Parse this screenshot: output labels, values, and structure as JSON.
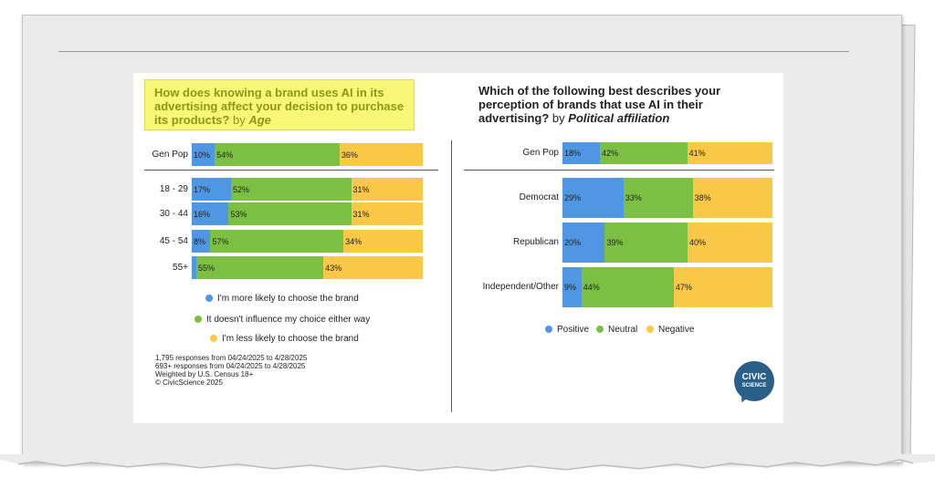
{
  "colors": {
    "positive": "#4f97e3",
    "neutral": "#7bc043",
    "negative": "#f9c846"
  },
  "chart_data": [
    {
      "type": "bar",
      "stacked": true,
      "orientation": "horizontal",
      "title": "How does knowing a brand uses AI in its advertising affect your decision to purchase its products?",
      "title_suffix": "by",
      "title_dimension": "Age",
      "categories": [
        "Gen Pop",
        "18 - 29",
        "30 - 44",
        "45 - 54",
        "55+"
      ],
      "series": [
        {
          "name": "I'm more likely to choose the brand",
          "labels": [
            "10%",
            "17%",
            "16%",
            "8%",
            ""
          ],
          "values": [
            10,
            17,
            16,
            8,
            2
          ]
        },
        {
          "name": "It doesn't influence my choice either way",
          "labels": [
            "54%",
            "52%",
            "53%",
            "57%",
            "55%"
          ],
          "values": [
            54,
            52,
            53,
            57,
            55
          ]
        },
        {
          "name": "I'm less likely to choose the brand",
          "labels": [
            "36%",
            "31%",
            "31%",
            "34%",
            "43%"
          ],
          "values": [
            36,
            31,
            31,
            34,
            43
          ]
        }
      ]
    },
    {
      "type": "bar",
      "stacked": true,
      "orientation": "horizontal",
      "title": "Which of the following best describes your perception of brands that use AI in their advertising?",
      "title_suffix": "by",
      "title_dimension": "Political affiliation",
      "categories": [
        "Gen Pop",
        "Democrat",
        "Republican",
        "Independent/Other"
      ],
      "series": [
        {
          "name": "Positive",
          "labels": [
            "18%",
            "29%",
            "20%",
            "9%"
          ],
          "values": [
            18,
            29,
            20,
            9
          ]
        },
        {
          "name": "Neutral",
          "labels": [
            "42%",
            "33%",
            "39%",
            "44%"
          ],
          "values": [
            42,
            33,
            39,
            44
          ]
        },
        {
          "name": "Negative",
          "labels": [
            "41%",
            "38%",
            "40%",
            "47%"
          ],
          "values": [
            41,
            38,
            40,
            47
          ]
        }
      ]
    }
  ],
  "notes": [
    "1,795 responses from 04/24/2025 to 4/28/2025",
    "693+ responses from 04/24/2025 to 4/28/2025",
    "Weighted by U.S. Census 18+",
    "© CivicScience 2025"
  ],
  "logo": {
    "line1": "CIVIC",
    "line2": "SCIENCE"
  }
}
